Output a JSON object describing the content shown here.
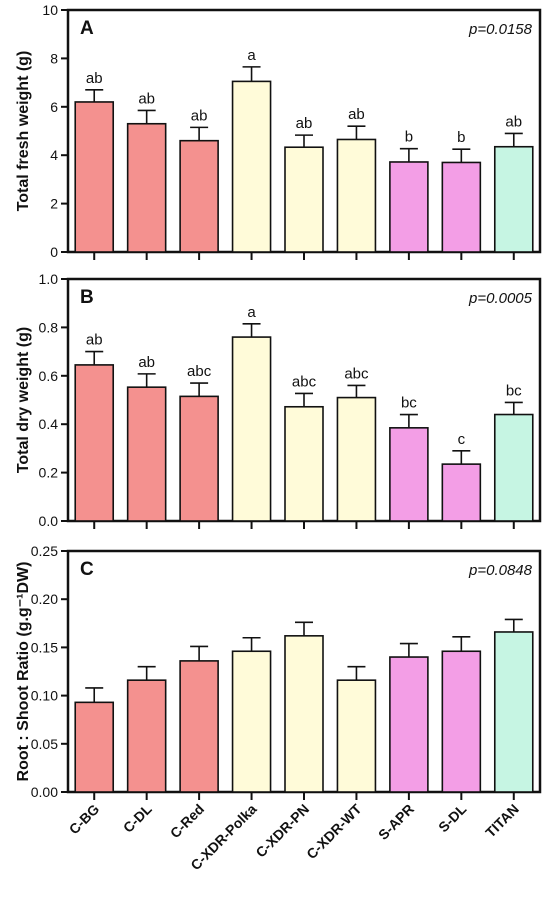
{
  "colors": {
    "C-BG": "#f4918f",
    "C-DL": "#f4918f",
    "C-Red": "#f4918f",
    "C-XDR-Polka": "#fffbd9",
    "C-XDR-PN": "#fffbd9",
    "C-XDR-WT": "#fffbd9",
    "S-APR": "#f39ee6",
    "S-DL": "#f39ee6",
    "TITAN": "#c6f5e3"
  },
  "chart_data": [
    {
      "type": "bar",
      "panel": "A",
      "pvalue": "p=0.0158",
      "ylabel": "Total fresh weight (g)",
      "ylim": [
        0,
        10
      ],
      "yticks": [
        "0",
        "2",
        "4",
        "6",
        "8",
        "10"
      ],
      "categories": [
        "C-BG",
        "C-DL",
        "C-Red",
        "C-XDR-Polka",
        "C-XDR-PN",
        "C-XDR-WT",
        "S-APR",
        "S-DL",
        "TITAN"
      ],
      "values": [
        6.2,
        5.3,
        4.6,
        7.05,
        4.33,
        4.65,
        3.72,
        3.7,
        4.35
      ],
      "errors": [
        0.5,
        0.55,
        0.55,
        0.6,
        0.5,
        0.55,
        0.55,
        0.55,
        0.55
      ],
      "significance": [
        "ab",
        "ab",
        "ab",
        "a",
        "ab",
        "ab",
        "b",
        "b",
        "ab"
      ]
    },
    {
      "type": "bar",
      "panel": "B",
      "pvalue": "p=0.0005",
      "ylabel": "Total dry weight (g)",
      "ylim": [
        0,
        1.0
      ],
      "yticks": [
        "0.0",
        "0.2",
        "0.4",
        "0.6",
        "0.8",
        "1.0"
      ],
      "categories": [
        "C-BG",
        "C-DL",
        "C-Red",
        "C-XDR-Polka",
        "C-XDR-PN",
        "C-XDR-WT",
        "S-APR",
        "S-DL",
        "TITAN"
      ],
      "values": [
        0.645,
        0.553,
        0.515,
        0.76,
        0.472,
        0.51,
        0.385,
        0.235,
        0.44
      ],
      "errors": [
        0.055,
        0.055,
        0.055,
        0.055,
        0.055,
        0.05,
        0.055,
        0.055,
        0.05
      ],
      "significance": [
        "ab",
        "ab",
        "abc",
        "a",
        "abc",
        "abc",
        "bc",
        "c",
        "bc"
      ]
    },
    {
      "type": "bar",
      "panel": "C",
      "pvalue": "p=0.0848",
      "ylabel": "Root : Shoot Ratio (g.g⁻¹DW)",
      "ylim": [
        0,
        0.25
      ],
      "yticks": [
        "0.00",
        "0.05",
        "0.10",
        "0.15",
        "0.20",
        "0.25"
      ],
      "categories": [
        "C-BG",
        "C-DL",
        "C-Red",
        "C-XDR-Polka",
        "C-XDR-PN",
        "C-XDR-WT",
        "S-APR",
        "S-DL",
        "TITAN"
      ],
      "values": [
        0.093,
        0.116,
        0.136,
        0.146,
        0.162,
        0.116,
        0.14,
        0.146,
        0.166
      ],
      "errors": [
        0.015,
        0.014,
        0.015,
        0.014,
        0.014,
        0.014,
        0.014,
        0.015,
        0.013
      ],
      "significance": [
        "",
        "",
        "",
        "",
        "",
        "",
        "",
        "",
        ""
      ]
    }
  ]
}
